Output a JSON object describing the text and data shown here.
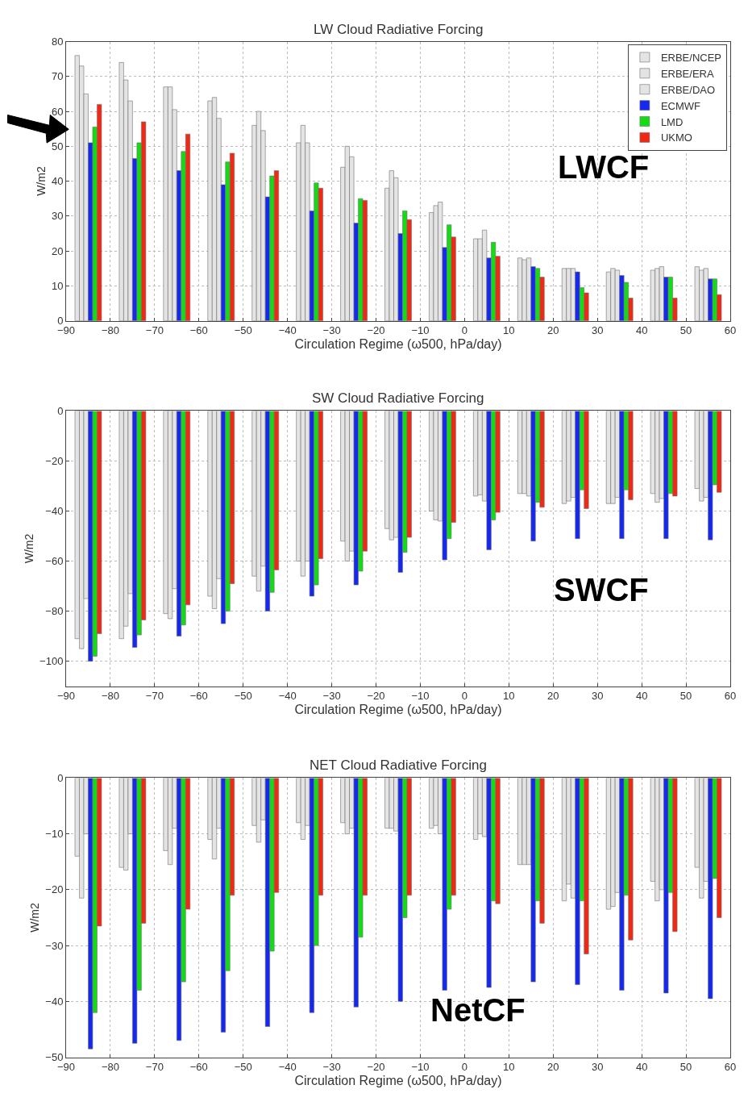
{
  "chart_data": [
    {
      "type": "bar",
      "title": "LW Cloud Radiative Forcing",
      "xlabel": "Circulation Regime (ω500, hPa/day)",
      "ylabel": "W/m2",
      "x": [
        -85,
        -75,
        -65,
        -55,
        -45,
        -35,
        -25,
        -15,
        -5,
        5,
        15,
        25,
        35,
        45,
        55
      ],
      "series": [
        {
          "name": "ERBE/NCEP",
          "color": "#e4e4e4",
          "values": [
            76,
            74,
            67,
            63,
            56,
            51,
            44,
            38,
            31,
            23.5,
            18,
            15,
            14,
            14.5,
            15.5
          ]
        },
        {
          "name": "ERBE/ERA",
          "color": "#e4e4e4",
          "values": [
            73,
            69,
            67,
            64,
            60,
            56,
            50,
            43,
            33,
            23.5,
            17.5,
            15,
            15,
            15,
            14.5
          ]
        },
        {
          "name": "ERBE/DAO",
          "color": "#e4e4e4",
          "values": [
            65,
            63,
            60.5,
            58,
            54.5,
            51,
            47,
            41,
            34,
            26,
            18,
            15,
            14.5,
            15.5,
            15
          ]
        },
        {
          "name": "ECMWF",
          "color": "#1428f0",
          "values": [
            51,
            46.5,
            43,
            39,
            35.5,
            31.5,
            28,
            25,
            21,
            18,
            15.5,
            14,
            13,
            12.5,
            12
          ]
        },
        {
          "name": "LMD",
          "color": "#14dc14",
          "values": [
            55.5,
            51,
            48.5,
            45.5,
            41.5,
            39.5,
            35,
            31.5,
            27.5,
            22.5,
            15,
            9.5,
            11,
            12.5,
            12
          ]
        },
        {
          "name": "UKMO",
          "color": "#f02814",
          "values": [
            62,
            57,
            53.5,
            48,
            43,
            38,
            34.5,
            29,
            24,
            18.5,
            12.5,
            8,
            6.5,
            6.5,
            7.5
          ]
        }
      ],
      "xlim": [
        -90,
        60
      ],
      "xticks": [
        -90,
        -80,
        -70,
        -60,
        -50,
        -40,
        -30,
        -20,
        -10,
        0,
        10,
        20,
        30,
        40,
        50,
        60
      ],
      "ylim": [
        0,
        80
      ],
      "yticks": [
        0,
        10,
        20,
        30,
        40,
        50,
        60,
        70,
        80
      ],
      "grid": true,
      "legend": "top right",
      "annotations": [
        "LWCF"
      ]
    },
    {
      "type": "bar",
      "title": "SW Cloud Radiative Forcing",
      "xlabel": "Circulation Regime (ω500, hPa/day)",
      "ylabel": "W/m2",
      "x": [
        -85,
        -75,
        -65,
        -55,
        -45,
        -35,
        -25,
        -15,
        -5,
        5,
        15,
        25,
        35,
        45,
        55
      ],
      "series": [
        {
          "color": "#e4e4e4",
          "values": [
            -91,
            -91,
            -81,
            -74,
            -66,
            -60,
            -52,
            -47,
            -40,
            -34,
            -33,
            -37,
            -37,
            -33,
            -31
          ]
        },
        {
          "color": "#e4e4e4",
          "values": [
            -95,
            -86,
            -83,
            -79,
            -72,
            -66,
            -60,
            -51.5,
            -43.5,
            -33.5,
            -33,
            -36,
            -37,
            -36.5,
            -36
          ]
        },
        {
          "color": "#e4e4e4",
          "values": [
            -75,
            -73,
            -71,
            -67,
            -62,
            -60,
            -56,
            -50.5,
            -44,
            -36,
            -34,
            -34.5,
            -34.5,
            -35,
            -34.5
          ]
        },
        {
          "color": "#1428f0",
          "values": [
            -100,
            -94.5,
            -90,
            -85,
            -80,
            -74,
            -69.5,
            -64.5,
            -59.5,
            -55.5,
            -52,
            -51,
            -51,
            -51,
            -51.5
          ]
        },
        {
          "color": "#14dc14",
          "values": [
            -98,
            -89.5,
            -85.5,
            -80,
            -72.5,
            -69.5,
            -64,
            -56.5,
            -51,
            -43.5,
            -36.5,
            -31.5,
            -31.5,
            -33,
            -29.5
          ]
        },
        {
          "color": "#f02814",
          "values": [
            -89,
            -83.5,
            -77.5,
            -69,
            -63.5,
            -59,
            -56,
            -50.5,
            -44.5,
            -40.5,
            -38.5,
            -39,
            -35.5,
            -34,
            -32.5
          ]
        }
      ],
      "xlim": [
        -90,
        60
      ],
      "xticks": [
        -90,
        -80,
        -70,
        -60,
        -50,
        -40,
        -30,
        -20,
        -10,
        0,
        10,
        20,
        30,
        40,
        50,
        60
      ],
      "ylim": [
        -110,
        0
      ],
      "yticks": [
        -100,
        -80,
        -60,
        -40,
        -20,
        0
      ],
      "grid": true,
      "annotations": [
        "SWCF"
      ]
    },
    {
      "type": "bar",
      "title": "NET Cloud Radiative Forcing",
      "xlabel": "Circulation Regime (ω500, hPa/day)",
      "ylabel": "W/m2",
      "x": [
        -85,
        -75,
        -65,
        -55,
        -45,
        -35,
        -25,
        -15,
        -5,
        5,
        15,
        25,
        35,
        45,
        55
      ],
      "series": [
        {
          "color": "#e4e4e4",
          "values": [
            -14,
            -16,
            -13,
            -11,
            -8.5,
            -8,
            -8,
            -9,
            -9,
            -11,
            -15.5,
            -22,
            -23.5,
            -18.5,
            -16
          ]
        },
        {
          "color": "#e4e4e4",
          "values": [
            -21.5,
            -16.5,
            -15.5,
            -14.5,
            -11.5,
            -11,
            -10,
            -9,
            -8.5,
            -10,
            -15.5,
            -19,
            -23,
            -22,
            -21.5
          ]
        },
        {
          "color": "#e4e4e4",
          "values": [
            -10,
            -10,
            -9,
            -9,
            -7.5,
            -8.5,
            -9,
            -9.5,
            -10,
            -10.5,
            -15.5,
            -21.5,
            -20.5,
            -20,
            -18.5
          ]
        },
        {
          "color": "#1428f0",
          "values": [
            -48.5,
            -47.5,
            -47,
            -45.5,
            -44.5,
            -42,
            -41,
            -40,
            -38,
            -37.5,
            -36.5,
            -37,
            -38,
            -38.5,
            -39.5
          ]
        },
        {
          "color": "#14dc14",
          "values": [
            -42,
            -38,
            -36.5,
            -34.5,
            -31,
            -30,
            -28.5,
            -25,
            -23.5,
            -22,
            -22,
            -22,
            -21,
            -20.5,
            -18
          ]
        },
        {
          "color": "#f02814",
          "values": [
            -26.5,
            -26,
            -23.5,
            -21,
            -20.5,
            -21,
            -21,
            -21,
            -21,
            -22.5,
            -26,
            -31.5,
            -29,
            -27.5,
            -25
          ]
        }
      ],
      "xlim": [
        -90,
        60
      ],
      "xticks": [
        -90,
        -80,
        -70,
        -60,
        -50,
        -40,
        -30,
        -20,
        -10,
        0,
        10,
        20,
        30,
        40,
        50,
        60
      ],
      "ylim": [
        -50,
        0
      ],
      "yticks": [
        -50,
        -40,
        -30,
        -20,
        -10,
        0
      ],
      "grid": true,
      "annotations": [
        "NetCF"
      ]
    }
  ]
}
